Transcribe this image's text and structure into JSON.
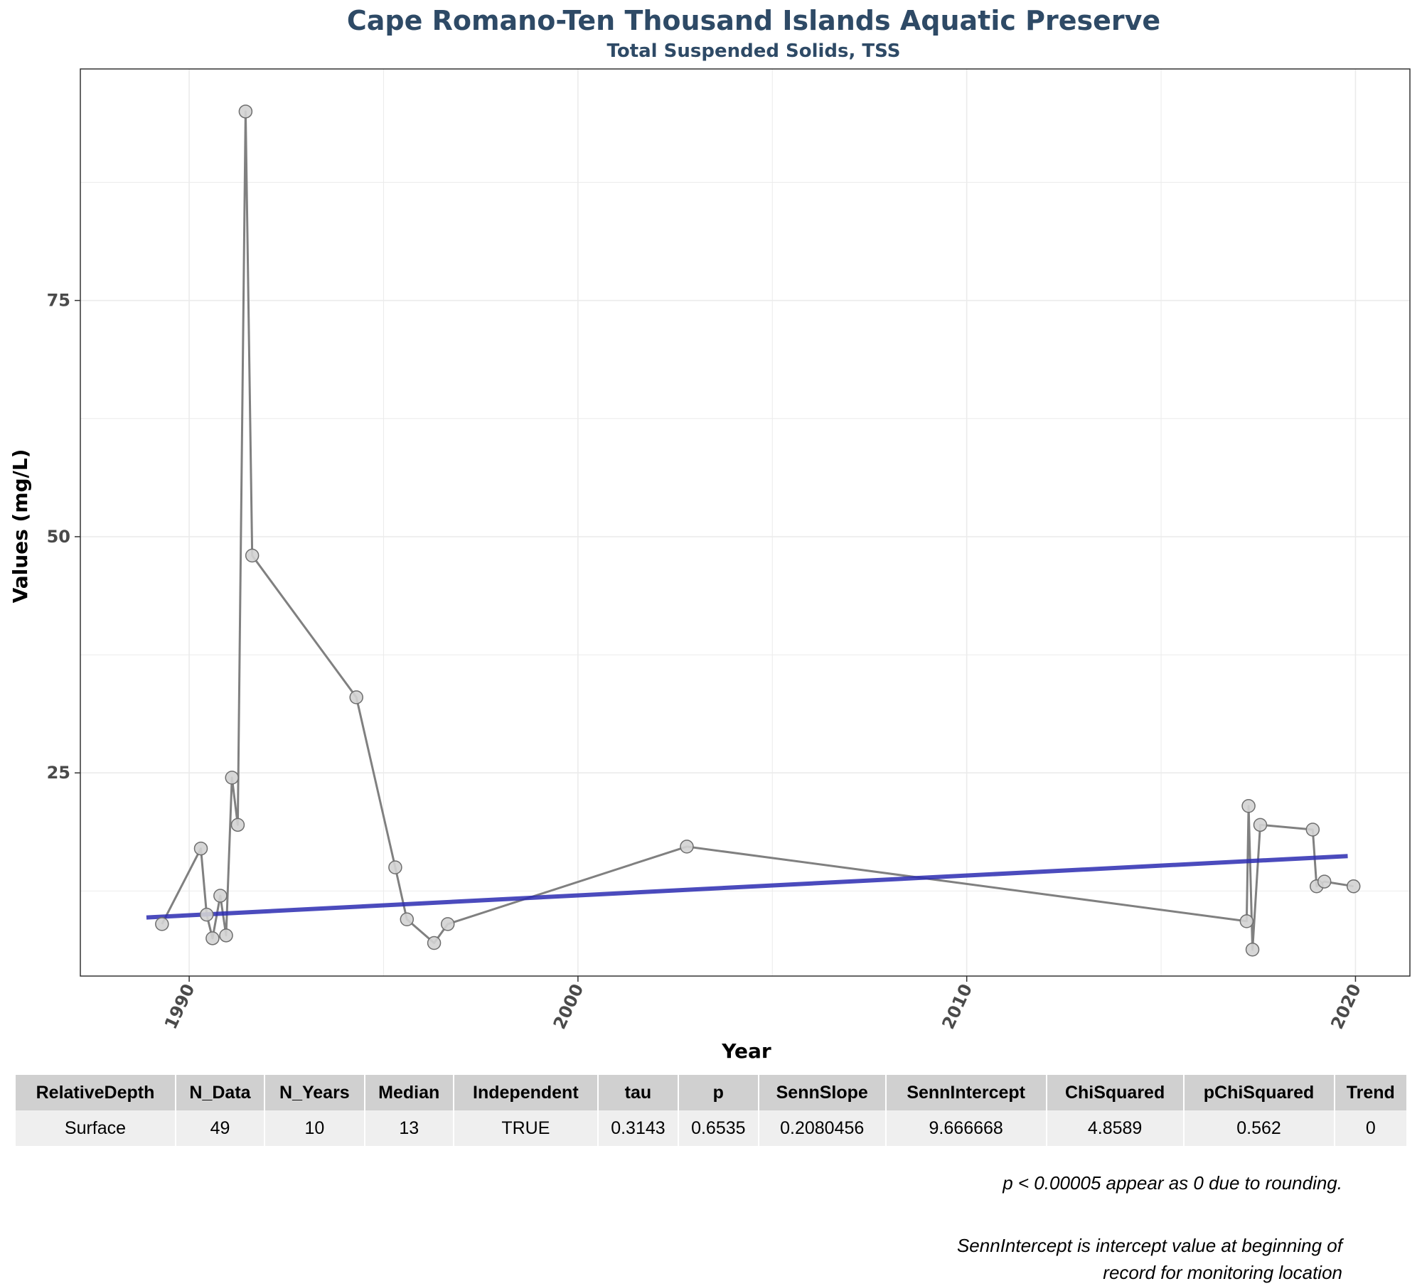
{
  "colors": {
    "title": "#2e4a66",
    "series_line": "#808080",
    "point_fill": "#d3d3d3",
    "point_stroke": "#6e6e6e",
    "trend_line": "#2b2bb2",
    "grid": "#ebebeb",
    "header_bg": "#d0d0d0",
    "row_bg": "#efefef"
  },
  "chart_data": {
    "type": "line",
    "title": "Cape Romano-Ten Thousand Islands Aquatic Preserve",
    "subtitle": "Total Suspended Solids, TSS",
    "xlabel": "Year",
    "ylabel": "Values (mg/L)",
    "xlim": [
      1987.2,
      2021.4
    ],
    "ylim": [
      3.5,
      99.5
    ],
    "x_ticks": [
      1990,
      2000,
      2010,
      2020
    ],
    "y_ticks": [
      25,
      50,
      75
    ],
    "grid": true,
    "legend": "none",
    "series": [
      {
        "points": [
          {
            "x": 1989.3,
            "y": 9.0
          },
          {
            "x": 1990.3,
            "y": 17.0
          },
          {
            "x": 1990.45,
            "y": 10.0
          },
          {
            "x": 1990.6,
            "y": 7.5
          },
          {
            "x": 1990.8,
            "y": 12.0
          },
          {
            "x": 1990.95,
            "y": 7.8
          },
          {
            "x": 1991.1,
            "y": 24.5
          },
          {
            "x": 1991.25,
            "y": 19.5
          },
          {
            "x": 1991.45,
            "y": 95.0
          },
          {
            "x": 1991.62,
            "y": 48.0
          },
          {
            "x": 1994.3,
            "y": 33.0
          },
          {
            "x": 1995.3,
            "y": 15.0
          },
          {
            "x": 1995.6,
            "y": 9.5
          },
          {
            "x": 1996.3,
            "y": 7.0
          },
          {
            "x": 1996.65,
            "y": 9.0
          },
          {
            "x": 2002.8,
            "y": 17.2
          },
          {
            "x": 2017.2,
            "y": 9.3
          },
          {
            "x": 2017.25,
            "y": 21.5
          },
          {
            "x": 2017.35,
            "y": 6.3
          },
          {
            "x": 2017.55,
            "y": 19.5
          },
          {
            "x": 2018.9,
            "y": 19.0
          },
          {
            "x": 2019.0,
            "y": 13.0
          },
          {
            "x": 2019.2,
            "y": 13.5
          },
          {
            "x": 2019.95,
            "y": 13.0
          }
        ]
      }
    ],
    "trend_line": {
      "x": [
        1988.9,
        2019.8
      ],
      "y": [
        9.7,
        16.2
      ]
    }
  },
  "table": {
    "headers": [
      "RelativeDepth",
      "N_Data",
      "N_Years",
      "Median",
      "Independent",
      "tau",
      "p",
      "SennSlope",
      "SennIntercept",
      "ChiSquared",
      "pChiSquared",
      "Trend"
    ],
    "rows": [
      [
        "Surface",
        "49",
        "10",
        "13",
        "TRUE",
        "0.3143",
        "0.6535",
        "0.2080456",
        "9.666668",
        "4.8589",
        "0.562",
        "0"
      ]
    ]
  },
  "notes": {
    "rounding": "p < 0.00005 appear as 0 due to rounding.",
    "intercept_line1": "SennIntercept is intercept value at beginning of",
    "intercept_line2": "record for monitoring location"
  }
}
